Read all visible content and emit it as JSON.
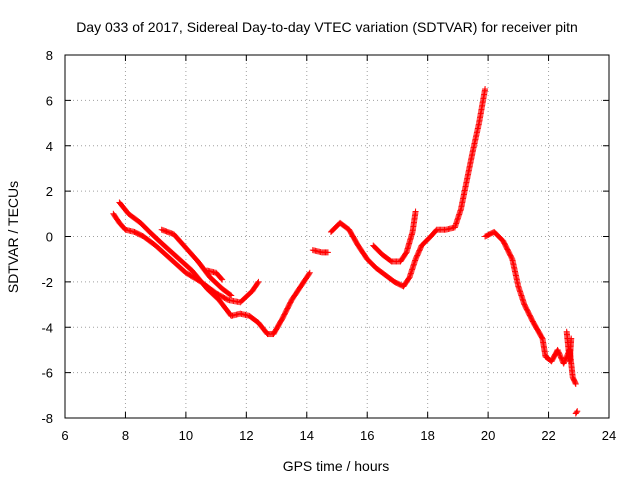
{
  "chart_data": {
    "type": "scatter",
    "title": "Day 033 of 2017, Sidereal Day-to-day VTEC variation (SDTVAR) for receiver pitn",
    "xlabel": "GPS time / hours",
    "ylabel": "SDTVAR / TECUs",
    "xlim": [
      6,
      24
    ],
    "ylim": [
      -8,
      8
    ],
    "xticks": [
      "6",
      "8",
      "10",
      "12",
      "14",
      "16",
      "18",
      "20",
      "22",
      "24"
    ],
    "yticks": [
      "8",
      "6",
      "4",
      "2",
      "0",
      "-2",
      "-4",
      "-6",
      "-8"
    ],
    "grid": true,
    "marker": "plus",
    "series_color": "#ff0000",
    "segments": [
      [
        [
          7.6,
          1.0
        ],
        [
          7.8,
          0.6
        ],
        [
          8.0,
          0.3
        ],
        [
          8.3,
          0.2
        ],
        [
          8.6,
          0.0
        ],
        [
          9.0,
          -0.4
        ],
        [
          9.5,
          -1.0
        ],
        [
          10.0,
          -1.6
        ],
        [
          10.5,
          -2.0
        ],
        [
          11.0,
          -2.5
        ],
        [
          11.4,
          -2.8
        ],
        [
          11.8,
          -2.9
        ],
        [
          12.2,
          -2.4
        ],
        [
          12.4,
          -2.0
        ]
      ],
      [
        [
          7.8,
          1.5
        ],
        [
          8.1,
          1.0
        ],
        [
          8.5,
          0.6
        ],
        [
          8.8,
          0.2
        ],
        [
          9.2,
          -0.3
        ],
        [
          9.7,
          -0.9
        ],
        [
          10.2,
          -1.5
        ],
        [
          10.7,
          -2.3
        ],
        [
          11.1,
          -2.8
        ],
        [
          11.5,
          -3.5
        ],
        [
          11.8,
          -3.4
        ],
        [
          12.1,
          -3.5
        ],
        [
          12.4,
          -3.8
        ],
        [
          12.7,
          -4.3
        ],
        [
          12.9,
          -4.3
        ],
        [
          13.2,
          -3.6
        ],
        [
          13.5,
          -2.8
        ],
        [
          13.8,
          -2.2
        ],
        [
          14.1,
          -1.6
        ]
      ],
      [
        [
          9.2,
          0.3
        ],
        [
          9.6,
          0.1
        ],
        [
          10.0,
          -0.5
        ],
        [
          10.4,
          -1.1
        ],
        [
          10.8,
          -1.8
        ],
        [
          11.2,
          -2.3
        ],
        [
          11.5,
          -2.6
        ]
      ],
      [
        [
          10.7,
          -1.5
        ],
        [
          11.0,
          -1.6
        ],
        [
          11.2,
          -1.9
        ]
      ],
      [
        [
          14.2,
          -0.6
        ],
        [
          14.5,
          -0.7
        ],
        [
          14.7,
          -0.7
        ]
      ],
      [
        [
          14.8,
          0.2
        ],
        [
          15.1,
          0.6
        ],
        [
          15.4,
          0.3
        ],
        [
          15.7,
          -0.4
        ],
        [
          16.0,
          -1.0
        ],
        [
          16.3,
          -1.4
        ],
        [
          16.6,
          -1.7
        ],
        [
          16.9,
          -2.0
        ],
        [
          17.2,
          -2.2
        ],
        [
          17.4,
          -1.8
        ],
        [
          17.6,
          -1.0
        ],
        [
          17.8,
          -0.4
        ],
        [
          18.1,
          0.0
        ],
        [
          18.3,
          0.3
        ],
        [
          18.6,
          0.3
        ],
        [
          18.9,
          0.4
        ],
        [
          19.1,
          1.2
        ],
        [
          19.3,
          2.5
        ],
        [
          19.5,
          3.8
        ],
        [
          19.7,
          5.0
        ],
        [
          19.9,
          6.5
        ]
      ],
      [
        [
          16.2,
          -0.4
        ],
        [
          16.5,
          -0.8
        ],
        [
          16.8,
          -1.1
        ],
        [
          17.1,
          -1.1
        ],
        [
          17.3,
          -0.7
        ],
        [
          17.5,
          0.2
        ],
        [
          17.6,
          1.1
        ]
      ],
      [
        [
          19.9,
          0.0
        ],
        [
          20.2,
          0.2
        ],
        [
          20.5,
          -0.2
        ],
        [
          20.8,
          -1.0
        ],
        [
          21.0,
          -2.2
        ],
        [
          21.2,
          -3.0
        ],
        [
          21.5,
          -3.8
        ],
        [
          21.8,
          -4.5
        ],
        [
          21.9,
          -5.3
        ],
        [
          22.1,
          -5.5
        ],
        [
          22.3,
          -5.0
        ],
        [
          22.5,
          -5.6
        ],
        [
          22.7,
          -5.0
        ],
        [
          22.8,
          -6.2
        ],
        [
          22.9,
          -6.5
        ]
      ],
      [
        [
          22.6,
          -4.2
        ],
        [
          22.7,
          -5.5
        ],
        [
          22.75,
          -4.5
        ]
      ],
      [
        [
          22.9,
          -7.8
        ],
        [
          22.95,
          -7.7
        ]
      ]
    ]
  }
}
